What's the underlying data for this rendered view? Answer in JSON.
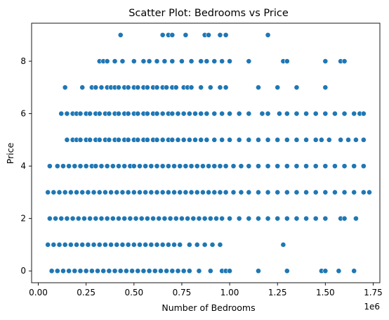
{
  "chart_data": {
    "type": "scatter",
    "title": "Scatter Plot: Bedrooms vs Price",
    "xlabel": "Number of Bedrooms",
    "ylabel": "Price",
    "x_offset_label": "1e6",
    "x_scale": 1000000,
    "xlim": [
      -0.035,
      1.785
    ],
    "ylim": [
      -0.45,
      9.45
    ],
    "x_ticks": [
      0.0,
      0.25,
      0.5,
      0.75,
      1.0,
      1.25,
      1.5,
      1.75
    ],
    "x_tick_labels": [
      "0.00",
      "0.25",
      "0.50",
      "0.75",
      "1.00",
      "1.25",
      "1.50",
      "1.75"
    ],
    "y_ticks": [
      0,
      2,
      4,
      6,
      8
    ],
    "y_tick_labels": [
      "0",
      "2",
      "4",
      "6",
      "8"
    ],
    "grid": false,
    "point_color": "#1f77b4",
    "series": [
      {
        "points_by_y": {
          "9": [
            0.43,
            0.65,
            0.68,
            0.7,
            0.77,
            0.87,
            0.89,
            0.95,
            0.98,
            1.2
          ],
          "8": [
            0.32,
            0.34,
            0.36,
            0.4,
            0.44,
            0.5,
            0.55,
            0.58,
            0.62,
            0.66,
            0.7,
            0.75,
            0.8,
            0.85,
            0.88,
            0.92,
            0.96,
            1.0,
            1.1,
            1.28,
            1.3,
            1.5,
            1.58,
            1.6
          ],
          "7": [
            0.14,
            0.23,
            0.28,
            0.3,
            0.33,
            0.36,
            0.38,
            0.4,
            0.42,
            0.45,
            0.47,
            0.5,
            0.52,
            0.55,
            0.57,
            0.6,
            0.62,
            0.65,
            0.67,
            0.7,
            0.72,
            0.76,
            0.78,
            0.8,
            0.85,
            0.9,
            0.95,
            0.98,
            1.15,
            1.25,
            1.35,
            1.5
          ],
          "6": [
            0.12,
            0.15,
            0.18,
            0.2,
            0.22,
            0.25,
            0.27,
            0.3,
            0.32,
            0.35,
            0.37,
            0.4,
            0.42,
            0.45,
            0.47,
            0.5,
            0.52,
            0.55,
            0.57,
            0.6,
            0.62,
            0.65,
            0.68,
            0.7,
            0.73,
            0.76,
            0.79,
            0.82,
            0.85,
            0.88,
            0.92,
            0.96,
            1.0,
            1.05,
            1.1,
            1.17,
            1.2,
            1.26,
            1.3,
            1.35,
            1.4,
            1.45,
            1.5,
            1.55,
            1.6,
            1.65,
            1.68,
            1.7
          ],
          "5": [
            0.15,
            0.18,
            0.2,
            0.22,
            0.25,
            0.27,
            0.3,
            0.32,
            0.35,
            0.37,
            0.4,
            0.42,
            0.45,
            0.47,
            0.5,
            0.52,
            0.55,
            0.57,
            0.6,
            0.62,
            0.65,
            0.68,
            0.7,
            0.73,
            0.76,
            0.79,
            0.82,
            0.85,
            0.88,
            0.92,
            0.96,
            1.0,
            1.05,
            1.1,
            1.15,
            1.2,
            1.25,
            1.3,
            1.35,
            1.4,
            1.45,
            1.48,
            1.52,
            1.58,
            1.62,
            1.66,
            1.7
          ],
          "4": [
            0.06,
            0.1,
            0.13,
            0.16,
            0.19,
            0.22,
            0.25,
            0.28,
            0.3,
            0.33,
            0.36,
            0.39,
            0.42,
            0.45,
            0.48,
            0.5,
            0.53,
            0.56,
            0.59,
            0.62,
            0.65,
            0.68,
            0.71,
            0.74,
            0.77,
            0.8,
            0.83,
            0.86,
            0.89,
            0.92,
            0.95,
            0.98,
            1.02,
            1.06,
            1.1,
            1.15,
            1.2,
            1.25,
            1.3,
            1.35,
            1.4,
            1.45,
            1.5,
            1.55,
            1.6,
            1.65,
            1.7
          ],
          "3": [
            0.05,
            0.08,
            0.11,
            0.14,
            0.17,
            0.2,
            0.23,
            0.26,
            0.29,
            0.32,
            0.35,
            0.38,
            0.41,
            0.44,
            0.47,
            0.5,
            0.53,
            0.56,
            0.59,
            0.62,
            0.65,
            0.68,
            0.71,
            0.74,
            0.77,
            0.8,
            0.83,
            0.86,
            0.89,
            0.92,
            0.95,
            0.98,
            1.02,
            1.06,
            1.1,
            1.15,
            1.2,
            1.25,
            1.3,
            1.35,
            1.4,
            1.45,
            1.5,
            1.55,
            1.6,
            1.65,
            1.7,
            1.73
          ],
          "2": [
            0.06,
            0.09,
            0.12,
            0.15,
            0.18,
            0.21,
            0.24,
            0.27,
            0.3,
            0.33,
            0.36,
            0.39,
            0.42,
            0.45,
            0.48,
            0.51,
            0.54,
            0.57,
            0.6,
            0.63,
            0.66,
            0.69,
            0.72,
            0.75,
            0.78,
            0.81,
            0.84,
            0.87,
            0.9,
            0.93,
            0.96,
            1.0,
            1.05,
            1.1,
            1.15,
            1.2,
            1.25,
            1.3,
            1.35,
            1.4,
            1.45,
            1.5,
            1.58,
            1.6,
            1.66
          ],
          "1": [
            0.05,
            0.08,
            0.11,
            0.14,
            0.17,
            0.2,
            0.23,
            0.26,
            0.29,
            0.32,
            0.35,
            0.38,
            0.41,
            0.44,
            0.47,
            0.5,
            0.53,
            0.56,
            0.59,
            0.62,
            0.65,
            0.68,
            0.71,
            0.74,
            0.79,
            0.83,
            0.87,
            0.91,
            0.95,
            1.28
          ],
          "0": [
            0.07,
            0.1,
            0.13,
            0.16,
            0.19,
            0.22,
            0.25,
            0.28,
            0.31,
            0.34,
            0.37,
            0.4,
            0.43,
            0.46,
            0.49,
            0.52,
            0.55,
            0.58,
            0.61,
            0.64,
            0.67,
            0.7,
            0.73,
            0.76,
            0.79,
            0.84,
            0.9,
            0.96,
            0.98,
            1.0,
            1.15,
            1.3,
            1.48,
            1.5,
            1.57,
            1.65
          ]
        }
      }
    ]
  }
}
